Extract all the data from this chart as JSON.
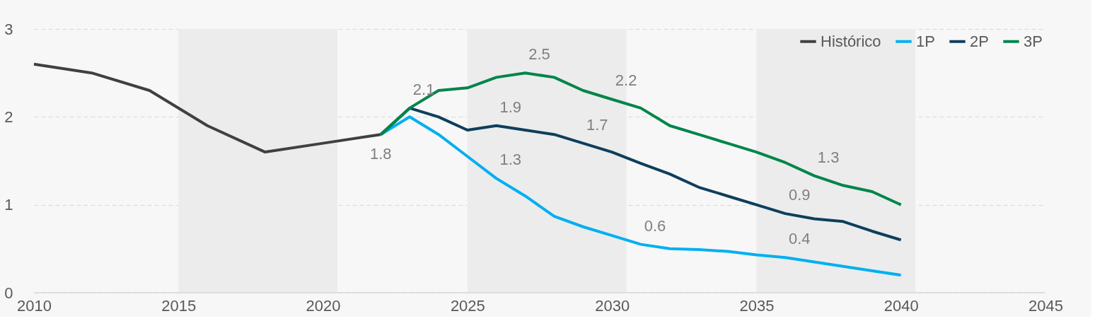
{
  "chart_data": {
    "type": "line",
    "xlim": [
      2010,
      2045
    ],
    "xticks": [
      2010,
      2015,
      2020,
      2025,
      2030,
      2035,
      2040,
      2045
    ],
    "ylim": [
      0,
      3
    ],
    "yticks": [
      0,
      1,
      2,
      3
    ],
    "grid": "y",
    "legend": "top right",
    "line_style": "solid",
    "marker": "none",
    "series": [
      {
        "name": "Histórico",
        "color": "#404040",
        "x": [
          2010,
          2012,
          2014,
          2016,
          2018,
          2020,
          2022
        ],
        "values": [
          2.6,
          2.5,
          2.3,
          1.9,
          1.6,
          1.7,
          1.8
        ]
      },
      {
        "name": "1P",
        "color": "#00b0f0",
        "x": [
          2022,
          2023,
          2024,
          2025,
          2026,
          2027,
          2028,
          2029,
          2030,
          2031,
          2032,
          2033,
          2034,
          2035,
          2036,
          2037,
          2038,
          2039,
          2040
        ],
        "values": [
          1.8,
          2.0,
          1.8,
          1.55,
          1.3,
          1.1,
          0.87,
          0.75,
          0.65,
          0.55,
          0.5,
          0.49,
          0.47,
          0.43,
          0.4,
          0.35,
          0.3,
          0.25,
          0.2
        ]
      },
      {
        "name": "2P",
        "color": "#0e3f5c",
        "x": [
          2022,
          2023,
          2024,
          2025,
          2026,
          2027,
          2028,
          2029,
          2030,
          2031,
          2032,
          2033,
          2034,
          2035,
          2036,
          2037,
          2038,
          2039,
          2040
        ],
        "values": [
          1.8,
          2.1,
          2.0,
          1.85,
          1.9,
          1.85,
          1.8,
          1.7,
          1.6,
          1.47,
          1.35,
          1.2,
          1.1,
          1.0,
          0.9,
          0.84,
          0.81,
          0.7,
          0.6
        ]
      },
      {
        "name": "3P",
        "color": "#00854a",
        "x": [
          2022,
          2023,
          2024,
          2025,
          2026,
          2027,
          2028,
          2029,
          2030,
          2031,
          2032,
          2033,
          2034,
          2035,
          2036,
          2037,
          2038,
          2039,
          2040
        ],
        "values": [
          1.8,
          2.1,
          2.3,
          2.33,
          2.45,
          2.5,
          2.45,
          2.3,
          2.2,
          2.1,
          1.9,
          1.8,
          1.7,
          1.6,
          1.48,
          1.33,
          1.22,
          1.15,
          1.0
        ]
      }
    ],
    "bands": [
      {
        "axis": "x",
        "from": 2015,
        "to": 2020.5,
        "color": "#ececec"
      },
      {
        "axis": "x",
        "from": 2025,
        "to": 2030.5,
        "color": "#ececec"
      },
      {
        "axis": "x",
        "from": 2035,
        "to": 2040.5,
        "color": "#ececec"
      }
    ],
    "annotations": [
      {
        "text": "1.8",
        "x": 2022,
        "y": 1.8
      },
      {
        "text": "2.1",
        "x": 2023,
        "y": 2.1
      },
      {
        "text": "2.5",
        "x": 2027,
        "y": 2.5
      },
      {
        "text": "1.9",
        "x": 2026,
        "y": 1.9
      },
      {
        "text": "1.3",
        "x": 2026,
        "y": 1.3
      },
      {
        "text": "2.2",
        "x": 2030,
        "y": 2.2
      },
      {
        "text": "1.7",
        "x": 2029,
        "y": 1.7
      },
      {
        "text": "0.6",
        "x": 2031,
        "y": 0.55
      },
      {
        "text": "1.3",
        "x": 2037,
        "y": 1.33
      },
      {
        "text": "0.9",
        "x": 2036,
        "y": 0.9
      },
      {
        "text": "0.4",
        "x": 2036,
        "y": 0.4
      }
    ]
  }
}
